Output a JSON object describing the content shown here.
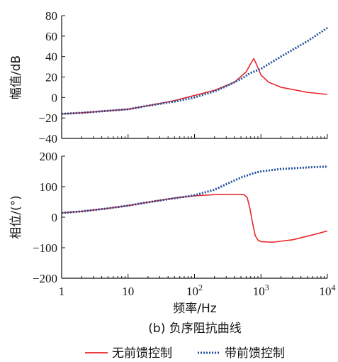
{
  "chart_data": [
    {
      "type": "line",
      "ylabel": "幅值/dB",
      "xscale": "log",
      "xlim": [
        1,
        10000
      ],
      "ylim": [
        -40,
        80
      ],
      "yticks": [
        "80",
        "60",
        "40",
        "20",
        "0",
        "−20",
        "−40"
      ],
      "series": [
        {
          "name": "无前馈控制",
          "color": "#e8262b",
          "style": "solid",
          "points": [
            [
              1,
              -16
            ],
            [
              2,
              -15
            ],
            [
              5,
              -13
            ],
            [
              10,
              -11.5
            ],
            [
              20,
              -8
            ],
            [
              50,
              -3
            ],
            [
              100,
              2
            ],
            [
              200,
              7
            ],
            [
              400,
              15
            ],
            [
              600,
              25
            ],
            [
              700,
              33
            ],
            [
              780,
              38
            ],
            [
              850,
              33
            ],
            [
              1000,
              22
            ],
            [
              1300,
              15
            ],
            [
              2000,
              10
            ],
            [
              5000,
              5
            ],
            [
              10000,
              3
            ]
          ]
        },
        {
          "name": "带前馈控制",
          "color": "#1f4f9c",
          "style": "dotted",
          "points": [
            [
              1,
              -16
            ],
            [
              2,
              -15
            ],
            [
              5,
              -13
            ],
            [
              10,
              -11.5
            ],
            [
              20,
              -8
            ],
            [
              50,
              -4
            ],
            [
              100,
              0
            ],
            [
              200,
              6
            ],
            [
              300,
              11
            ],
            [
              500,
              18
            ],
            [
              700,
              24
            ],
            [
              1000,
              28
            ],
            [
              2000,
              40
            ],
            [
              5000,
              55
            ],
            [
              10000,
              68
            ]
          ]
        }
      ]
    },
    {
      "type": "line",
      "ylabel": "相位/(°)",
      "xlabel": "频率/Hz",
      "xscale": "log",
      "xlim": [
        1,
        10000
      ],
      "ylim": [
        -200,
        200
      ],
      "yticks": [
        "200",
        "100",
        "0",
        "−100",
        "−200"
      ],
      "xticks": [
        {
          "base": "1",
          "exp": ""
        },
        {
          "base": "10",
          "exp": ""
        },
        {
          "base": "10",
          "exp": "2"
        },
        {
          "base": "10",
          "exp": "3"
        },
        {
          "base": "10",
          "exp": "4"
        }
      ],
      "series": [
        {
          "name": "无前馈控制",
          "color": "#e8262b",
          "style": "solid",
          "points": [
            [
              1,
              14
            ],
            [
              2,
              19
            ],
            [
              5,
              29
            ],
            [
              10,
              38
            ],
            [
              20,
              49
            ],
            [
              50,
              63
            ],
            [
              100,
              70
            ],
            [
              200,
              74
            ],
            [
              400,
              75
            ],
            [
              550,
              74
            ],
            [
              620,
              65
            ],
            [
              680,
              30
            ],
            [
              750,
              -20
            ],
            [
              820,
              -60
            ],
            [
              900,
              -75
            ],
            [
              1000,
              -80
            ],
            [
              1500,
              -82
            ],
            [
              3000,
              -74
            ],
            [
              6000,
              -58
            ],
            [
              10000,
              -45
            ]
          ]
        },
        {
          "name": "带前馈控制",
          "color": "#1f4f9c",
          "style": "dotted",
          "points": [
            [
              1,
              14
            ],
            [
              2,
              19
            ],
            [
              5,
              29
            ],
            [
              10,
              38
            ],
            [
              20,
              49
            ],
            [
              50,
              62
            ],
            [
              100,
              72
            ],
            [
              200,
              90
            ],
            [
              300,
              108
            ],
            [
              500,
              130
            ],
            [
              800,
              145
            ],
            [
              1000,
              150
            ],
            [
              2000,
              158
            ],
            [
              5000,
              163
            ],
            [
              10000,
              166
            ]
          ]
        }
      ]
    }
  ],
  "caption": "(b)  负序阻抗曲线",
  "legend": [
    {
      "label": "无前馈控制",
      "color": "#e8262b",
      "style": "solid"
    },
    {
      "label": "带前馈控制",
      "color": "#1f4f9c",
      "style": "dotted"
    }
  ]
}
